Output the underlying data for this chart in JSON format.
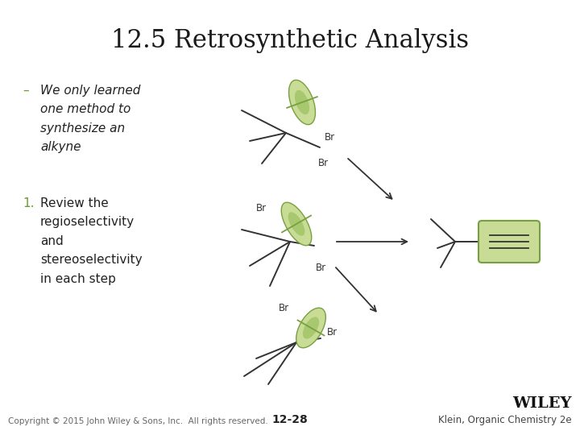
{
  "title": "12.5 Retrosynthetic Analysis",
  "title_fontsize": 22,
  "background_color": "#ffffff",
  "bullet1_dash": "–",
  "bullet1_text": "We only learned\none method to\nsynthesize an\nalkyne",
  "bullet2_num": "1.",
  "bullet2_text": "Review the\nregioselectivity\nand\nstereoselectivity\nin each step",
  "bullet_fontsize": 11,
  "footer_copyright": "Copyright © 2015 John Wiley & Sons, Inc.  All rights reserved.",
  "footer_page": "12-28",
  "footer_wiley": "WILEY",
  "footer_book": "Klein, Organic Chemistry 2e",
  "green_fill": "#c8dc96",
  "green_fill2": "#a8c870",
  "green_border": "#78a040",
  "box_fill": "#c8dc96",
  "box_border": "#78a040",
  "dash_color": "#6a9a30",
  "num_color": "#6a9a30",
  "line_color": "#333333",
  "br_fontsize": 8.5
}
